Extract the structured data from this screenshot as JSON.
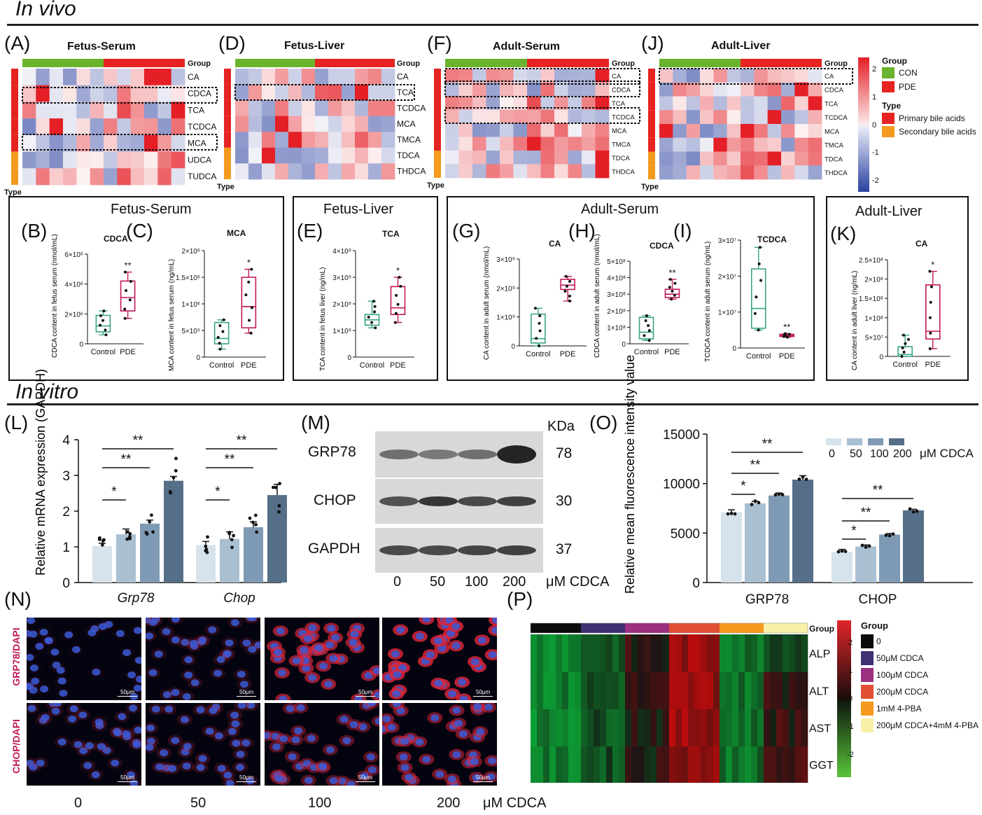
{
  "sections": {
    "in_vivo": "In vivo",
    "in_vitro": "In vitro"
  },
  "panels": {
    "A": "(A)",
    "B": "(B)",
    "C": "(C)",
    "D": "(D)",
    "E": "(E)",
    "F": "(F)",
    "G": "(G)",
    "H": "(H)",
    "I": "(I)",
    "J": "(J)",
    "K": "(K)",
    "L": "(L)",
    "M": "(M)",
    "N": "(N)",
    "O": "(O)",
    "P": "(P)"
  },
  "box_titles": {
    "fs": "Fetus-Serum",
    "fl": "Fetus-Liver",
    "as": "Adult-Serum",
    "al": "Adult-Liver"
  },
  "heat_titles": {
    "A": "Fetus-Serum",
    "D": "Fetus-Liver",
    "F": "Adult-Serum",
    "J": "Adult-Liver"
  },
  "heat_common": {
    "group": "Group",
    "type": "Type"
  },
  "legend": {
    "group_title": "Group",
    "con": "CON",
    "pde": "PDE",
    "type_title": "Type",
    "primary": "Primary bile acids",
    "secondary": "Secondary bile acids",
    "scale": [
      "2",
      "1",
      "0",
      "-1",
      "-2"
    ]
  },
  "colors": {
    "con": "#6ab42d",
    "pde": "#e52421",
    "primary": "#e52421",
    "secondary": "#f39a1f",
    "box_ctrl": "#3aa387",
    "box_pde": "#c2185b",
    "bar0": "#d6e3ec",
    "bar50": "#a9bfd2",
    "bar100": "#7f9ab4",
    "bar200": "#566f88"
  },
  "heatmaps": [
    {
      "id": "A",
      "rows": [
        "CA",
        "CDCA",
        "TCA",
        "TCDCA",
        "MCA",
        "UDCA",
        "TUDCA"
      ],
      "types": [
        "p",
        "p",
        "p",
        "p",
        "p",
        "s",
        "s"
      ]
    },
    {
      "id": "D",
      "rows": [
        "CA",
        "TCA",
        "TCDCA",
        "MCA",
        "TMCA",
        "TDCA",
        "THDCA"
      ],
      "types": [
        "p",
        "p",
        "p",
        "p",
        "p",
        "s",
        "s"
      ]
    },
    {
      "id": "F",
      "rows": [
        "CA",
        "CDCA",
        "TCA",
        "TCDCA",
        "MCA",
        "TMCA",
        "TDCA",
        "THDCA"
      ],
      "types": [
        "p",
        "p",
        "p",
        "p",
        "p",
        "p",
        "s",
        "s"
      ]
    },
    {
      "id": "J",
      "rows": [
        "CA",
        "CDCA",
        "TCA",
        "TCDCA",
        "MCA",
        "TMCA",
        "TDCA",
        "THDCA"
      ],
      "types": [
        "p",
        "p",
        "p",
        "p",
        "p",
        "p",
        "s",
        "s"
      ]
    }
  ],
  "chart_data": [
    {
      "id": "B",
      "type": "box",
      "title": "CDCA",
      "ylabel": "CDCA content in fetus serum (nmol/mL)",
      "categories": [
        "Control",
        "PDE"
      ],
      "ticks": [
        "0",
        "2×10⁶",
        "4×10⁶",
        "6×10⁶"
      ],
      "ylim": [
        0,
        6000000
      ],
      "boxes": [
        {
          "min": 600000,
          "q1": 800000,
          "med": 1200000,
          "q3": 1900000,
          "max": 2200000
        },
        {
          "min": 1700000,
          "q1": 2200000,
          "med": 3100000,
          "q3": 4200000,
          "max": 4800000
        }
      ],
      "sig": "**"
    },
    {
      "id": "C",
      "type": "box",
      "title": "MCA",
      "ylabel": "MCA content in fetus serum (ng/mL)",
      "categories": [
        "Control",
        "PDE"
      ],
      "ticks": [
        "0",
        "5×10⁵",
        "1×10⁶",
        "1.5×10⁶",
        "2×10⁶"
      ],
      "ylim": [
        0,
        2000000
      ],
      "boxes": [
        {
          "min": 150000,
          "q1": 250000,
          "med": 350000,
          "q3": 650000,
          "max": 700000
        },
        {
          "min": 450000,
          "q1": 550000,
          "med": 950000,
          "q3": 1500000,
          "max": 1650000
        }
      ],
      "sig": "*"
    },
    {
      "id": "E",
      "type": "box",
      "title": "TCA",
      "ylabel": "TCA content in fetus liver (ng/mL)",
      "categories": [
        "Control",
        "PDE"
      ],
      "ticks": [
        "0",
        "1×10⁹",
        "2×10⁹",
        "3×10⁹",
        "4×10⁹"
      ],
      "ylim": [
        0,
        4000000000
      ],
      "boxes": [
        {
          "min": 1100000000,
          "q1": 1200000000,
          "med": 1400000000,
          "q3": 1600000000,
          "max": 2100000000
        },
        {
          "min": 1300000000,
          "q1": 1600000000,
          "med": 1850000000,
          "q3": 2650000000,
          "max": 3000000000
        }
      ],
      "sig": "*"
    },
    {
      "id": "G",
      "type": "box",
      "title": "CA",
      "ylabel": "CA content in adult serum (nmol/mL)",
      "categories": [
        "Control",
        "PDE"
      ],
      "ticks": [
        "0",
        "1×10⁹",
        "2×10⁹",
        "3×10⁹"
      ],
      "ylim": [
        0,
        3000000000
      ],
      "boxes": [
        {
          "min": 0,
          "q1": 100000000,
          "med": 250000000,
          "q3": 1100000000,
          "max": 1300000000
        },
        {
          "min": 1550000000,
          "q1": 1950000000,
          "med": 2100000000,
          "q3": 2300000000,
          "max": 2400000000
        }
      ],
      "sig": ""
    },
    {
      "id": "H",
      "type": "box",
      "title": "CDCA",
      "ylabel": "CDCA content in adult serum (nmol/mL)",
      "categories": [
        "Control",
        "PDE"
      ],
      "ticks": [
        "0",
        "1×10⁸",
        "2×10⁸",
        "3×10⁸",
        "4×10⁸",
        "5×10⁸"
      ],
      "ylim": [
        0,
        500000000
      ],
      "boxes": [
        {
          "min": 20000000,
          "q1": 30000000,
          "med": 70000000,
          "q3": 160000000,
          "max": 170000000
        },
        {
          "min": 270000000,
          "q1": 280000000,
          "med": 300000000,
          "q3": 330000000,
          "max": 390000000
        }
      ],
      "sig": "**"
    },
    {
      "id": "I",
      "type": "box",
      "title": "TCDCA",
      "ylabel": "TCDCA content in adult serum (ng/mL)",
      "categories": [
        "Control",
        "PDE"
      ],
      "ticks": [
        "0",
        "1×10⁷",
        "2×10⁷",
        "3×10⁷"
      ],
      "ylim": [
        0,
        30000000
      ],
      "boxes": [
        {
          "min": 5000000,
          "q1": 5500000,
          "med": 11000000,
          "q3": 22000000,
          "max": 28000000
        },
        {
          "min": 3000000,
          "q1": 3200000,
          "med": 3500000,
          "q3": 3800000,
          "max": 4000000
        }
      ],
      "sig": "**"
    },
    {
      "id": "K",
      "type": "box",
      "title": "CA",
      "ylabel": "CA content in adult liver (ng/mL)",
      "categories": [
        "Control",
        "PDE"
      ],
      "ticks": [
        "0",
        "5×10⁷",
        "1×10⁸",
        "1.5×10⁸",
        "2×10⁸",
        "2.5×10⁸"
      ],
      "ylim": [
        0,
        250000000
      ],
      "boxes": [
        {
          "min": 0,
          "q1": 0,
          "med": 5000000,
          "q3": 25000000,
          "max": 55000000
        },
        {
          "min": 20000000,
          "q1": 45000000,
          "med": 65000000,
          "q3": 185000000,
          "max": 220000000
        }
      ],
      "sig": "*"
    },
    {
      "id": "L",
      "type": "bar",
      "ylabel": "Relative mRNA expression (GAPDH)",
      "groups": [
        "Grp78",
        "Chop"
      ],
      "ticks": [
        "0",
        "1",
        "2",
        "3",
        "4"
      ],
      "ylim": [
        0,
        4
      ],
      "series": [
        {
          "values": [
            1.02,
            1.05
          ],
          "err": [
            0.08,
            0.1
          ]
        },
        {
          "values": [
            1.35,
            1.22
          ],
          "err": [
            0.15,
            0.2
          ]
        },
        {
          "values": [
            1.65,
            1.55
          ],
          "err": [
            0.1,
            0.15
          ]
        },
        {
          "values": [
            2.85,
            2.45
          ],
          "err": [
            0.12,
            0.3
          ]
        }
      ],
      "sig": [
        {
          "text": "*",
          "level": 1
        },
        {
          "text": "**",
          "level": 2
        },
        {
          "text": "**",
          "level": 3
        }
      ]
    },
    {
      "id": "O",
      "type": "bar",
      "ylabel": "Relative mean fluorescence intensity value",
      "groups": [
        "GRP78",
        "CHOP"
      ],
      "ticks": [
        "0",
        "5000",
        "10000",
        "15000"
      ],
      "ylim": [
        0,
        15000
      ],
      "series": [
        {
          "name": "0",
          "values": [
            7100,
            3100
          ],
          "err": [
            250,
            250
          ]
        },
        {
          "name": "50",
          "values": [
            8000,
            3650
          ],
          "err": [
            200,
            150
          ]
        },
        {
          "name": "100",
          "values": [
            8800,
            4850
          ],
          "err": [
            250,
            100
          ]
        },
        {
          "name": "200",
          "values": [
            10400,
            7300
          ],
          "err": [
            400,
            100
          ]
        }
      ],
      "unit": "μM CDCA"
    }
  ],
  "blot": {
    "kda": "KDa",
    "rows": [
      {
        "name": "GRP78",
        "kda": "78"
      },
      {
        "name": "CHOP",
        "kda": "30"
      },
      {
        "name": "GAPDH",
        "kda": "37"
      }
    ],
    "doses": [
      "0",
      "50",
      "100",
      "200"
    ],
    "unit": "μM CDCA"
  },
  "if": {
    "row1": "GRP78/DAPI",
    "row2": "CHOP/DAPI",
    "scale": "50μm",
    "doses": [
      "0",
      "50",
      "100",
      "200"
    ],
    "unit": "μM CDCA"
  },
  "heatP": {
    "group": "Group",
    "rows": [
      "ALP",
      "ALT",
      "AST",
      "GGT"
    ],
    "legend_title": "Group",
    "legend": [
      "0",
      "50μM CDCA",
      "100μM CDCA",
      "200μM CDCA",
      "1mM 4-PBA",
      "200μM CDCA+4mM 4-PBA"
    ],
    "legend_colors": [
      "#0b0b0b",
      "#3f2f73",
      "#9b2f80",
      "#e04f35",
      "#f59a1e",
      "#f7f0a8"
    ],
    "scale": [
      "2",
      "1",
      "0",
      "-1",
      "-2"
    ]
  }
}
